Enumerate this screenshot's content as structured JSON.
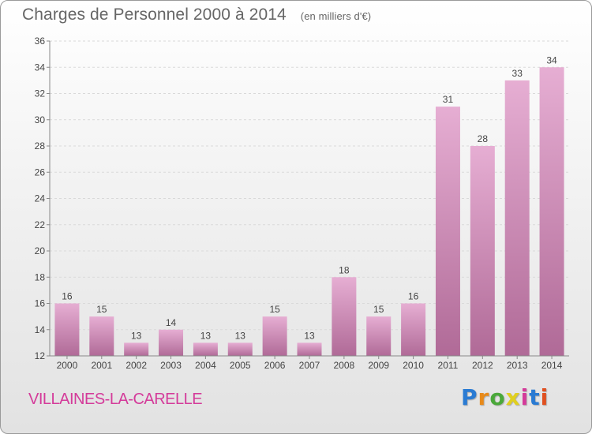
{
  "header": {
    "title": "Charges de Personnel 2000 à 2014",
    "subtitle": "(en milliers d'€)"
  },
  "footer": {
    "commune": "VILLAINES-LA-CARELLE",
    "brand": "Proxiti"
  },
  "colors": {
    "bar_light": "#e6aed3",
    "bar_dark": "#b06a97",
    "commune_text": "#d43b9a",
    "axis": "#888888"
  },
  "chart_data": {
    "type": "bar",
    "title": "Charges de Personnel 2000 à 2014",
    "subtitle": "(en milliers d'€)",
    "xlabel": "",
    "ylabel": "",
    "categories": [
      "2000",
      "2001",
      "2002",
      "2003",
      "2004",
      "2005",
      "2006",
      "2007",
      "2008",
      "2009",
      "2010",
      "2011",
      "2012",
      "2013",
      "2014"
    ],
    "values": [
      16,
      15,
      13,
      14,
      13,
      13,
      15,
      13,
      18,
      15,
      16,
      31,
      28,
      33,
      34
    ],
    "ylim": [
      12,
      36
    ],
    "yticks": [
      12,
      14,
      16,
      18,
      20,
      22,
      24,
      26,
      28,
      30,
      32,
      34,
      36
    ],
    "grid": true,
    "legend": "none"
  }
}
